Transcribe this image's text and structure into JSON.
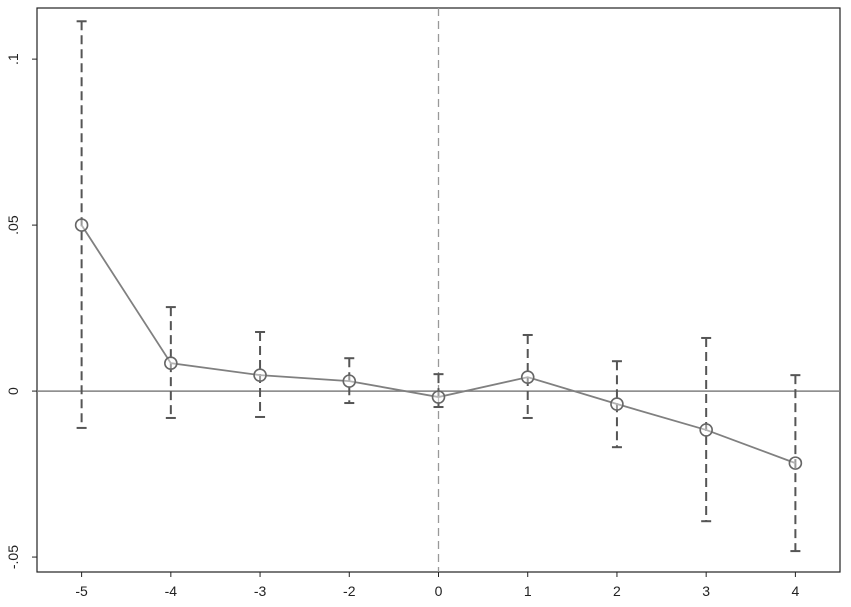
{
  "chart_data": {
    "type": "line",
    "categories": [
      "-5",
      "-4",
      "-3",
      "-2",
      "0",
      "1",
      "2",
      "3",
      "4"
    ],
    "series": [
      {
        "color": "#808080",
        "values": [
          0.05,
          0.0084,
          0.0048,
          0.003,
          -0.0018,
          0.0042,
          -0.0039,
          -0.0117,
          -0.0217
        ],
        "lower": [
          -0.0111,
          -0.0081,
          -0.0078,
          -0.0036,
          -0.0048,
          -0.0081,
          -0.0169,
          -0.0392,
          -0.0482
        ],
        "upper": [
          0.1114,
          0.0253,
          0.0178,
          0.0099,
          0.0051,
          0.0169,
          0.009,
          0.016,
          0.0048
        ],
        "error_color": "#555555"
      }
    ],
    "ylim": [
      -0.0545,
      0.1154
    ],
    "yticks": [
      {
        "value": -0.05,
        "label": "-.05"
      },
      0,
      {
        "value": 0.05,
        "label": ".05"
      },
      {
        "value": 0.1,
        "label": ".1"
      }
    ],
    "hline": 0,
    "vline": "0",
    "grid": false
  }
}
